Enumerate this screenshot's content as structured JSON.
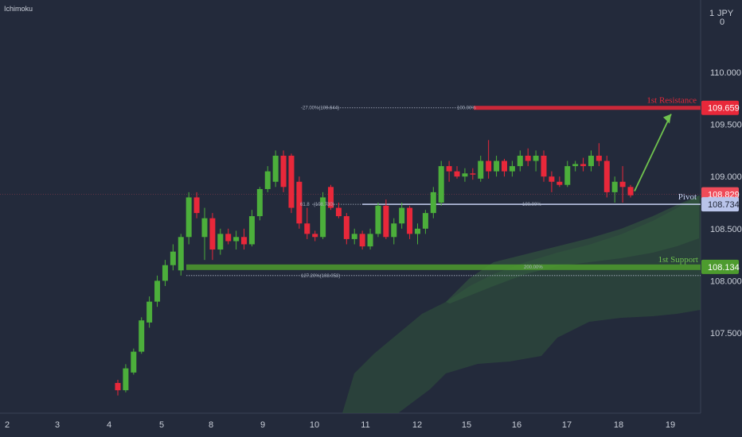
{
  "chart_data": {
    "type": "candlestick",
    "indicator_label": "Ichimoku",
    "currency": "JPY",
    "currency_top_tick": "1",
    "currency_bottom_tick": "0",
    "y_ticks": [
      "110.000",
      "109.500",
      "109.000",
      "108.500",
      "108.000",
      "107.500"
    ],
    "y_tick_values": [
      110.0,
      109.5,
      109.0,
      108.5,
      108.0,
      107.5
    ],
    "ylim": [
      107.05,
      111.1
    ],
    "x_ticks": [
      "2",
      "3",
      "4",
      "5",
      "8",
      "9",
      "10",
      "11",
      "12",
      "15",
      "16",
      "17",
      "18",
      "19"
    ],
    "price_tags": {
      "resistance": {
        "value": 109.659,
        "label": "109.659",
        "color": "#e8283a"
      },
      "current": {
        "value": 108.829,
        "label": "108.829",
        "color": "#ef4b59"
      },
      "pivot": {
        "value": 108.734,
        "label": "108.734",
        "color": "#b9c4ea"
      },
      "support": {
        "value": 108.134,
        "label": "108.134",
        "color": "#4d9b2e"
      }
    },
    "levels": {
      "resistance_label": "1st Resistance",
      "pivot_label": "Pivot",
      "support_label": "1st Support"
    },
    "fib_labels": {
      "ext_027": "-27.00%(109.644)",
      "res_100": "100.00%",
      "pivot_618": "61.8",
      "pivot_618_val": "(108.730)",
      "pivot_100": "100.00%",
      "sup_200": "200.00%",
      "sup_127": "127.20%(108.058)"
    },
    "colors": {
      "up": "#4caf3b",
      "down": "#e8283a",
      "cloud": "#2e4a3c",
      "arrow": "#6fc24e"
    },
    "candles": [
      [
        107.02,
        107.05,
        106.9,
        106.95
      ],
      [
        106.95,
        107.2,
        106.93,
        107.16
      ],
      [
        107.12,
        107.35,
        107.1,
        107.32
      ],
      [
        107.32,
        107.65,
        107.3,
        107.62
      ],
      [
        107.6,
        107.85,
        107.55,
        107.8
      ],
      [
        107.8,
        108.05,
        107.75,
        108.0
      ],
      [
        108.0,
        108.2,
        107.95,
        108.15
      ],
      [
        108.15,
        108.35,
        108.1,
        108.28
      ],
      [
        108.1,
        108.45,
        108.05,
        108.42
      ],
      [
        108.42,
        108.85,
        108.35,
        108.8
      ],
      [
        108.8,
        108.85,
        108.6,
        108.65
      ],
      [
        108.42,
        108.7,
        108.2,
        108.6
      ],
      [
        108.6,
        108.65,
        108.2,
        108.3
      ],
      [
        108.3,
        108.5,
        108.25,
        108.45
      ],
      [
        108.45,
        108.5,
        108.35,
        108.38
      ],
      [
        108.38,
        108.48,
        108.3,
        108.42
      ],
      [
        108.42,
        108.5,
        108.3,
        108.35
      ],
      [
        108.35,
        108.68,
        108.33,
        108.62
      ],
      [
        108.62,
        108.9,
        108.58,
        108.88
      ],
      [
        108.88,
        109.1,
        108.85,
        109.05
      ],
      [
        108.95,
        109.25,
        108.9,
        109.2
      ],
      [
        109.2,
        109.25,
        108.85,
        108.9
      ],
      [
        109.2,
        109.22,
        108.65,
        108.7
      ],
      [
        108.95,
        109.0,
        108.5,
        108.55
      ],
      [
        108.55,
        108.7,
        108.4,
        108.45
      ],
      [
        108.45,
        108.48,
        108.38,
        108.42
      ],
      [
        108.42,
        108.85,
        108.4,
        108.8
      ],
      [
        108.9,
        108.92,
        108.68,
        108.7
      ],
      [
        108.7,
        108.75,
        108.6,
        108.62
      ],
      [
        108.62,
        108.65,
        108.35,
        108.4
      ],
      [
        108.4,
        108.5,
        108.35,
        108.45
      ],
      [
        108.45,
        108.48,
        108.3,
        108.33
      ],
      [
        108.33,
        108.5,
        108.3,
        108.45
      ],
      [
        108.45,
        108.75,
        108.42,
        108.72
      ],
      [
        108.72,
        108.78,
        108.4,
        108.42
      ],
      [
        108.42,
        108.6,
        108.35,
        108.55
      ],
      [
        108.55,
        108.75,
        108.5,
        108.7
      ],
      [
        108.7,
        108.72,
        108.4,
        108.45
      ],
      [
        108.45,
        108.55,
        108.35,
        108.5
      ],
      [
        108.5,
        108.68,
        108.45,
        108.65
      ],
      [
        108.65,
        108.9,
        108.6,
        108.85
      ],
      [
        108.75,
        109.15,
        108.72,
        109.1
      ],
      [
        109.1,
        109.15,
        108.95,
        109.05
      ],
      [
        109.05,
        109.1,
        108.98,
        109.0
      ],
      [
        109.0,
        109.08,
        108.95,
        109.03
      ],
      [
        109.03,
        109.08,
        108.97,
        109.02
      ],
      [
        108.98,
        109.2,
        108.95,
        109.15
      ],
      [
        109.15,
        109.35,
        108.98,
        109.05
      ],
      [
        109.05,
        109.2,
        109.0,
        109.15
      ],
      [
        109.15,
        109.17,
        109.0,
        109.05
      ],
      [
        109.05,
        109.15,
        109.0,
        109.1
      ],
      [
        109.1,
        109.25,
        109.05,
        109.2
      ],
      [
        109.2,
        109.27,
        109.1,
        109.15
      ],
      [
        109.15,
        109.25,
        109.05,
        109.2
      ],
      [
        109.2,
        109.25,
        108.95,
        109.0
      ],
      [
        109.0,
        109.05,
        108.85,
        108.95
      ],
      [
        108.95,
        109.0,
        108.9,
        108.92
      ],
      [
        108.92,
        109.15,
        108.9,
        109.1
      ],
      [
        109.1,
        109.15,
        109.05,
        109.12
      ],
      [
        109.12,
        109.18,
        109.05,
        109.1
      ],
      [
        109.1,
        109.25,
        109.05,
        109.2
      ],
      [
        109.2,
        109.32,
        109.1,
        109.15
      ],
      [
        109.15,
        109.2,
        108.8,
        108.85
      ],
      [
        108.85,
        109.0,
        108.75,
        108.95
      ],
      [
        108.95,
        109.1,
        108.75,
        108.9
      ],
      [
        108.9,
        108.92,
        108.8,
        108.82
      ]
    ],
    "arrow": {
      "from": 108.86,
      "to": 109.6
    }
  }
}
